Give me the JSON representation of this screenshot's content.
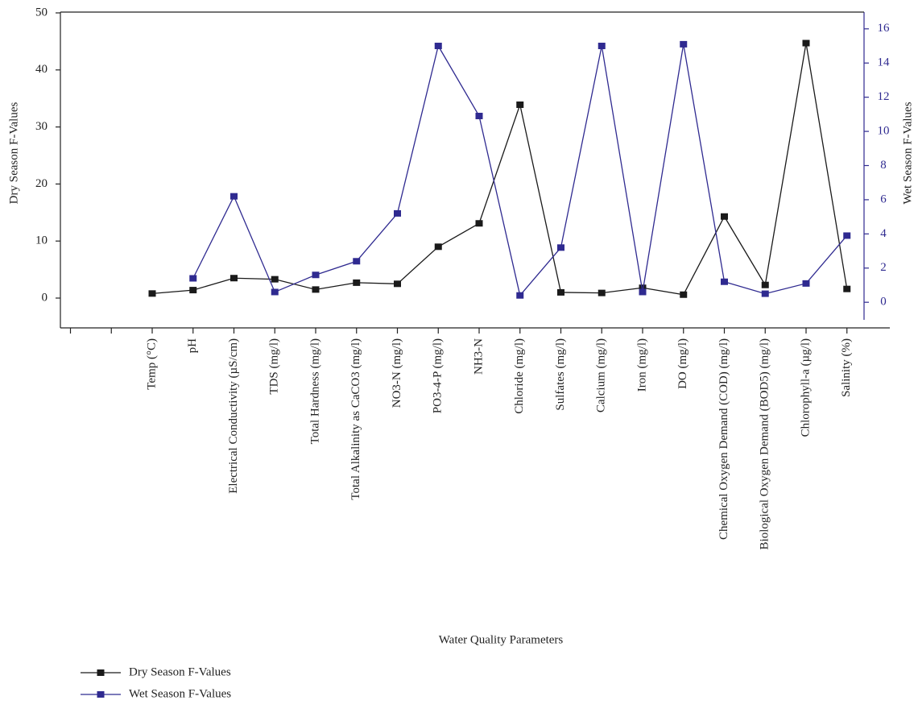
{
  "chart_data": {
    "type": "line",
    "x_label": "Water Quality Parameters",
    "y_label": "Dry Season F-Values",
    "y2_label": "Wet Season F-Values",
    "categories": [
      "Temp (°C)",
      "pH",
      "Electrical Conductivity (µS/cm)",
      "TDS (mg/l)",
      "Total Hardness (mg/l)",
      "Total Alkalinity as CaCO3 (mg/l)",
      "NO3-N (mg/l)",
      "PO3-4-P (mg/l)",
      "NH3-N",
      "Chloride (mg/l)",
      "Sulfates (mg/l)",
      "Calcium (mg/l)",
      "Iron (mg/l)",
      "DO (mg/l)",
      "Chemical Oxygen Demand (COD) (mg/l)",
      "Biological Oxygen Demand (BOD5) (mg/l)",
      "Chlorophyll-a (µg/l)",
      "Salinity (%)"
    ],
    "series": [
      {
        "name": "Dry Season F-Values",
        "color": "#1a1a1a",
        "values": [
          0.8,
          1.4,
          3.5,
          3.3,
          1.5,
          2.7,
          2.5,
          9.0,
          13.1,
          33.9,
          1.0,
          0.9,
          1.8,
          0.6,
          14.3,
          2.3,
          44.7,
          1.6
        ]
      },
      {
        "name": "Wet Season F-Values",
        "color": "#2f2a90",
        "axis": "y2",
        "values": [
          null,
          1.4,
          6.2,
          0.6,
          1.6,
          2.4,
          5.2,
          15.0,
          10.9,
          0.4,
          3.2,
          15.0,
          0.6,
          15.1,
          1.2,
          0.5,
          1.1,
          3.9
        ]
      }
    ],
    "ylim": [
      -5,
      50
    ],
    "yticks": [
      0,
      10,
      20,
      30,
      40,
      50
    ],
    "y2lim": [
      -1,
      17
    ],
    "y2ticks": [
      0,
      2,
      4,
      6,
      8,
      10,
      12,
      14,
      16
    ],
    "y2_color": "#2f2a90",
    "legend": "bottom-left"
  }
}
